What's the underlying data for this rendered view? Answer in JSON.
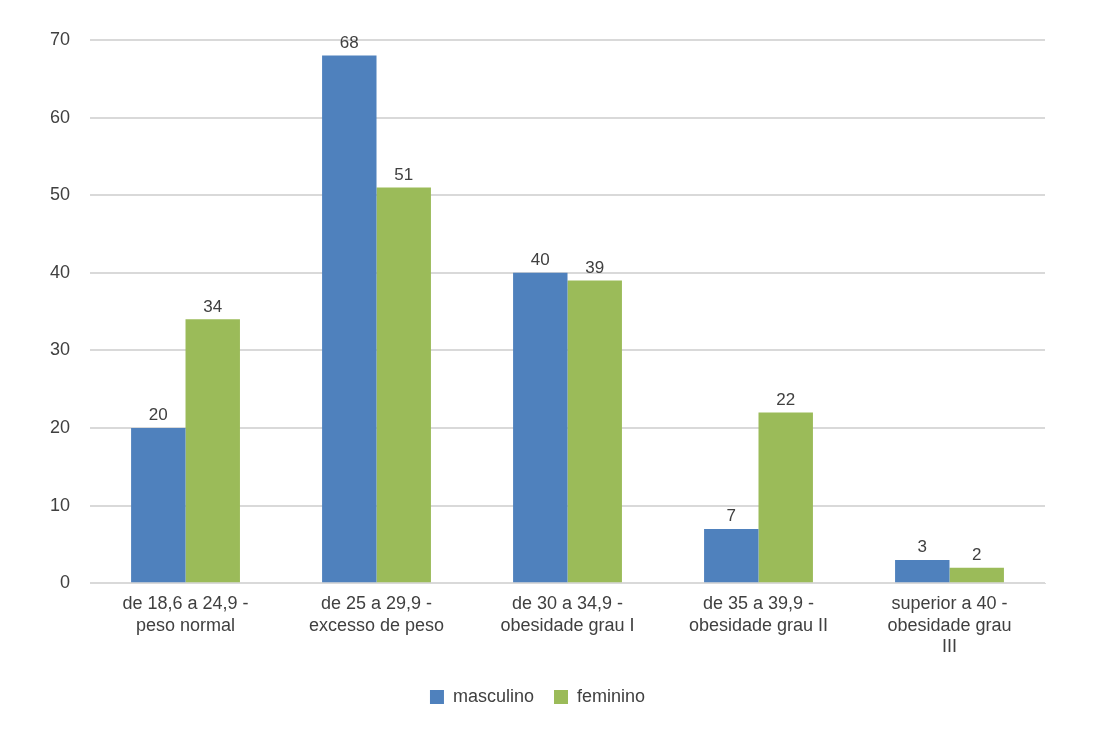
{
  "chart_data": {
    "type": "bar",
    "categories": [
      "de 18,6 a 24,9 -\npeso normal",
      "de 25 a 29,9 -\nexcesso de peso",
      "de 30 a 34,9 -\nobesidade grau I",
      "de 35 a 39,9 -\nobesidade grau II",
      "superior a 40 -\nobesidade grau\nIII"
    ],
    "series": [
      {
        "name": "masculino",
        "color": "#4f81bd",
        "values": [
          20,
          68,
          40,
          7,
          3
        ]
      },
      {
        "name": "feminino",
        "color": "#9bbb59",
        "values": [
          34,
          51,
          39,
          22,
          2
        ]
      }
    ],
    "ylim": [
      0,
      70
    ],
    "yticks": [
      0,
      10,
      20,
      30,
      40,
      50,
      60,
      70
    ],
    "grid": "y",
    "legend": "bottom",
    "data_labels": true
  }
}
